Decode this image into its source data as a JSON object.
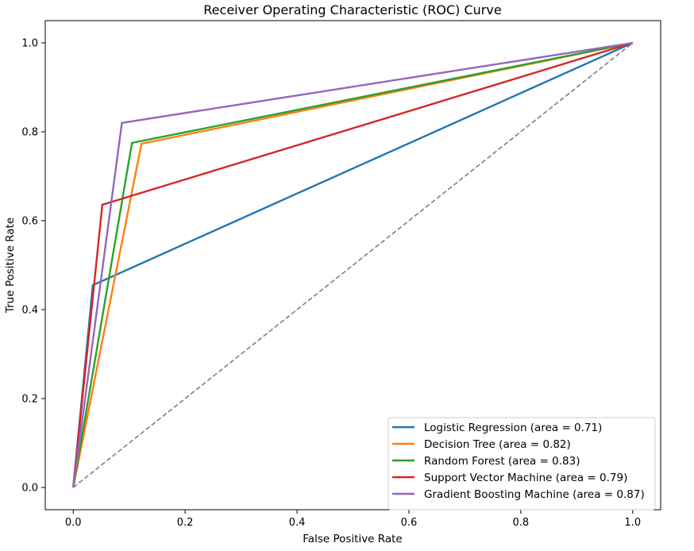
{
  "chart_data": {
    "type": "line",
    "title": "Receiver Operating Characteristic (ROC) Curve",
    "xlabel": "False Positive Rate",
    "ylabel": "True Positive Rate",
    "xlim": [
      -0.05,
      1.05
    ],
    "ylim": [
      -0.05,
      1.05
    ],
    "xticks": [
      0.0,
      0.2,
      0.4,
      0.6,
      0.8,
      1.0
    ],
    "yticks": [
      0.0,
      0.2,
      0.4,
      0.6,
      0.8,
      1.0
    ],
    "xtick_labels": [
      "0.0",
      "0.2",
      "0.4",
      "0.6",
      "0.8",
      "1.0"
    ],
    "ytick_labels": [
      "0.0",
      "0.2",
      "0.4",
      "0.6",
      "0.8",
      "1.0"
    ],
    "grid": false,
    "legend_position": "lower-right",
    "diagonal": {
      "x": [
        0,
        1
      ],
      "y": [
        0,
        1
      ],
      "color": "#7f7f7f",
      "style": "dashed"
    },
    "series": [
      {
        "name": "Logistic Regression (area = 0.71)",
        "color": "#1f77b4",
        "x": [
          0,
          0.035,
          1
        ],
        "y": [
          0,
          0.455,
          1
        ]
      },
      {
        "name": "Decision Tree (area = 0.82)",
        "color": "#ff7f0e",
        "x": [
          0,
          0.122,
          1
        ],
        "y": [
          0,
          0.773,
          1
        ]
      },
      {
        "name": "Random Forest (area = 0.83)",
        "color": "#2ca02c",
        "x": [
          0,
          0.105,
          1
        ],
        "y": [
          0,
          0.775,
          1
        ]
      },
      {
        "name": "Support Vector Machine (area = 0.79)",
        "color": "#d62728",
        "x": [
          0,
          0.052,
          1
        ],
        "y": [
          0,
          0.636,
          1
        ]
      },
      {
        "name": "Gradient Boosting Machine (area = 0.87)",
        "color": "#9467bd",
        "x": [
          0,
          0.087,
          1
        ],
        "y": [
          0,
          0.82,
          1
        ]
      }
    ]
  }
}
